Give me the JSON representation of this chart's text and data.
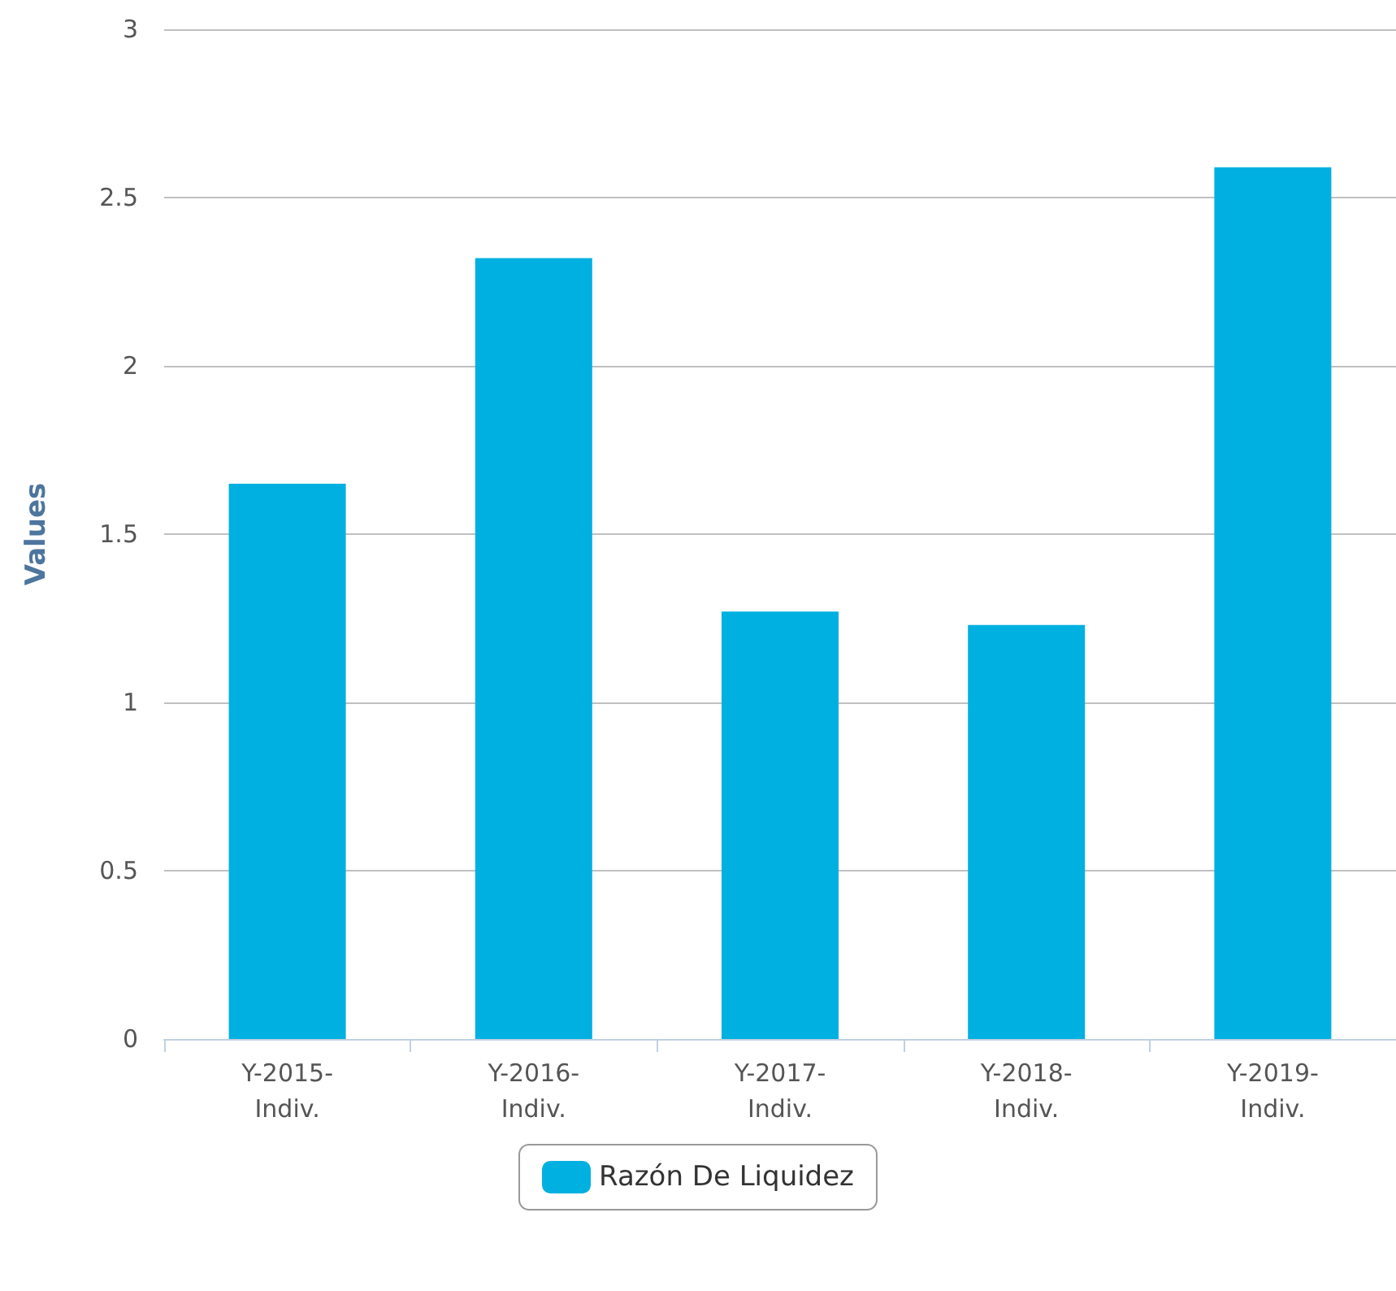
{
  "chart_data": {
    "type": "bar",
    "ylabel": "Values",
    "categories": [
      "Y-2015-Indiv.",
      "Y-2016-Indiv.",
      "Y-2017-Indiv.",
      "Y-2018-Indiv.",
      "Y-2019-Indiv."
    ],
    "series": [
      {
        "name": "Razón De Liquidez",
        "color": "#00b0e0",
        "values": [
          1.65,
          2.32,
          1.27,
          1.23,
          2.59
        ]
      }
    ],
    "ylim": [
      0,
      3
    ],
    "yticks": [
      0,
      0.5,
      1,
      1.5,
      2,
      2.5,
      3
    ],
    "grid": "y",
    "legend": "bottom"
  }
}
